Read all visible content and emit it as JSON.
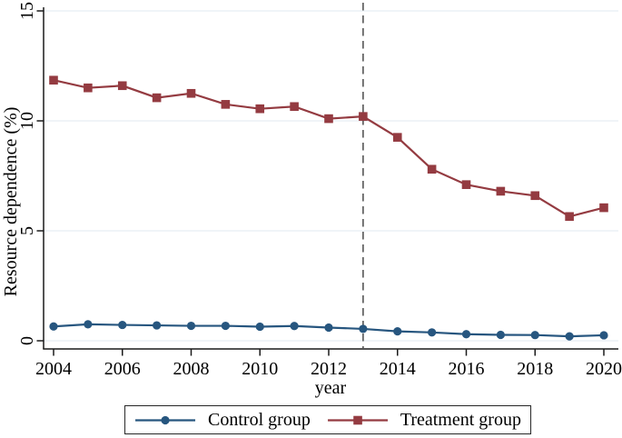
{
  "chart_data": {
    "type": "line",
    "title": "",
    "xlabel": "year",
    "ylabel": "Resource dependence (%)",
    "xlim": [
      2004,
      2020
    ],
    "ylim": [
      0,
      15
    ],
    "xticks": [
      2004,
      2006,
      2008,
      2010,
      2012,
      2014,
      2016,
      2018,
      2020
    ],
    "yticks": [
      0,
      5,
      10,
      15
    ],
    "grid": true,
    "gridline_color": "#e6edf4",
    "axis_color": "#1a1a1a",
    "x": [
      2004,
      2005,
      2006,
      2007,
      2008,
      2009,
      2010,
      2011,
      2012,
      2013,
      2014,
      2015,
      2016,
      2017,
      2018,
      2019,
      2020
    ],
    "series": [
      {
        "name": "Control group",
        "marker": "circle",
        "color": "#27567f",
        "values": [
          0.65,
          0.75,
          0.72,
          0.7,
          0.68,
          0.68,
          0.64,
          0.67,
          0.6,
          0.54,
          0.43,
          0.38,
          0.3,
          0.27,
          0.26,
          0.2,
          0.25
        ]
      },
      {
        "name": "Treatment group",
        "marker": "square",
        "color": "#943b41",
        "values": [
          11.85,
          11.5,
          11.6,
          11.05,
          11.25,
          10.75,
          10.55,
          10.65,
          10.1,
          10.2,
          9.25,
          7.8,
          7.1,
          6.8,
          6.6,
          5.65,
          6.05
        ]
      }
    ],
    "reference_line": {
      "x": 2013,
      "style": "dashed",
      "color": "#5f5f5f"
    },
    "legend_position": "bottom"
  }
}
